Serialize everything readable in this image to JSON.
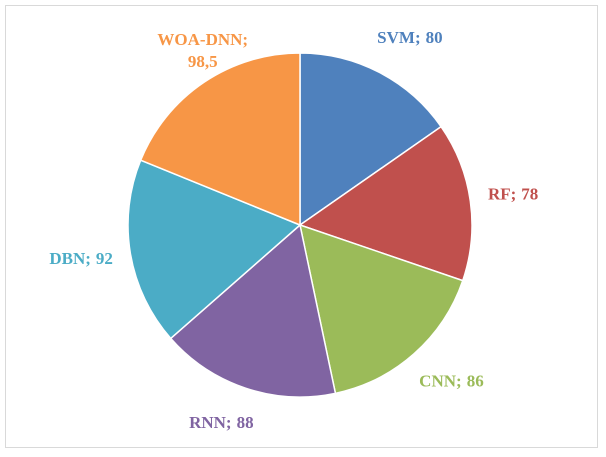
{
  "chart_data": {
    "type": "pie",
    "categories": [
      "SVM",
      "RF",
      "CNN",
      "RNN",
      "DBN",
      "WOA-DNN"
    ],
    "values": [
      80,
      78,
      86,
      88,
      92,
      98.5
    ],
    "value_labels": [
      "80",
      "78",
      "86",
      "88",
      "92",
      "98,5"
    ],
    "label_separator": ";",
    "colors": [
      "#4f81bd",
      "#c0504d",
      "#9bbb59",
      "#8064a2",
      "#4bacc6",
      "#f79646"
    ]
  }
}
